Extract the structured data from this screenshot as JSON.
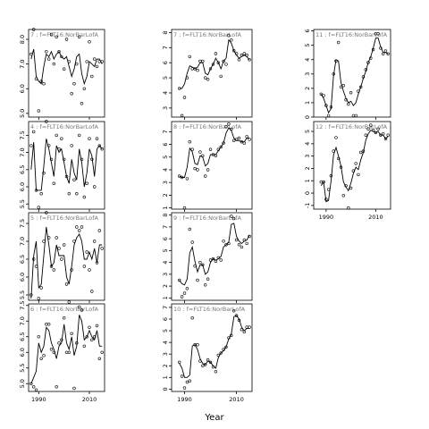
{
  "figure": {
    "xlabel": "Year"
  },
  "chart_data": [
    {
      "type": "scatter",
      "title": "7 : f=FLT16:NorBarLofA",
      "xlim": [
        1986,
        2016
      ],
      "ylim": [
        4.85,
        8.4
      ],
      "yticks": [
        5,
        6,
        7,
        8
      ],
      "ytick_labels": [
        "5.0",
        "6.0",
        "7.0",
        "8.0"
      ],
      "x": [
        1987,
        1988,
        1989,
        1990,
        1991,
        1992,
        1993,
        1994,
        1995,
        1996,
        1997,
        1998,
        1999,
        2000,
        2001,
        2002,
        2003,
        2004,
        2005,
        2006,
        2007,
        2008,
        2009,
        2010,
        2011,
        2012,
        2013,
        2014,
        2015
      ],
      "y": [
        7.4,
        8.4,
        6.4,
        5.1,
        6.3,
        6.2,
        7.5,
        7.2,
        8.2,
        7.0,
        8.1,
        7.5,
        7.3,
        6.8,
        8.0,
        7.1,
        5.8,
        6.2,
        7.0,
        8.1,
        5.4,
        6.0,
        7.1,
        7.9,
        6.5,
        7.2,
        6.9,
        7.1,
        7.1
      ],
      "smooth": [
        7.2,
        7.6,
        6.5,
        6.3,
        6.2,
        6.9,
        7.4,
        7.3,
        7.5,
        7.2,
        7.4,
        7.5,
        7.3,
        7.2,
        7.3,
        6.9,
        6.5,
        6.8,
        7.3,
        7.4,
        6.6,
        6.2,
        6.5,
        7.1,
        7.0,
        6.9,
        7.2,
        7.2,
        7.0
      ]
    },
    {
      "type": "scatter",
      "title": "4 : f=FLT16:NorBarLofA",
      "xlim": [
        1986,
        2016
      ],
      "ylim": [
        5.35,
        7.9
      ],
      "yticks": [
        5.5,
        6.0,
        6.5,
        7.0,
        7.5
      ],
      "ytick_labels": [
        "5.5",
        "6.0",
        "6.5",
        "7.0",
        "7.5"
      ],
      "x": [
        1987,
        1988,
        1989,
        1990,
        1991,
        1992,
        1993,
        1994,
        1995,
        1996,
        1997,
        1998,
        1999,
        2000,
        2001,
        2002,
        2003,
        2004,
        2005,
        2006,
        2007,
        2008,
        2009,
        2010,
        2011,
        2012,
        2013,
        2014,
        2015
      ],
      "y": [
        7.2,
        7.6,
        5.9,
        5.4,
        5.8,
        6.4,
        7.9,
        7.2,
        6.8,
        6.1,
        7.5,
        7.1,
        7.4,
        6.8,
        6.3,
        5.8,
        7.2,
        6.2,
        5.8,
        7.5,
        6.8,
        5.7,
        6.1,
        7.4,
        6.8,
        6.0,
        7.4,
        7.2,
        7.1
      ],
      "smooth": [
        6.5,
        7.3,
        5.9,
        5.9,
        5.9,
        6.6,
        7.4,
        7.1,
        6.7,
        6.3,
        7.2,
        7.0,
        7.1,
        6.7,
        6.3,
        6.1,
        6.8,
        6.4,
        6.2,
        7.1,
        6.7,
        6.0,
        6.4,
        7.1,
        6.9,
        6.3,
        7.1,
        7.2,
        7.1
      ]
    },
    {
      "type": "scatter",
      "title": "5 : f=FLT16:NorBarLofA",
      "xlim": [
        1986,
        2016
      ],
      "ylim": [
        5.35,
        7.8
      ],
      "yticks": [
        5.5,
        6.0,
        6.5,
        7.0,
        7.5
      ],
      "ytick_labels": [
        "5.5",
        "6.0",
        "6.5",
        "7.0",
        "7.5"
      ],
      "x": [
        1987,
        1988,
        1989,
        1990,
        1991,
        1992,
        1993,
        1994,
        1995,
        1996,
        1997,
        1998,
        1999,
        2000,
        2001,
        2002,
        2003,
        2004,
        2005,
        2006,
        2007,
        2008,
        2009,
        2010,
        2011,
        2012,
        2013,
        2014,
        2015
      ],
      "y": [
        5.5,
        6.5,
        6.3,
        5.4,
        5.7,
        7.0,
        7.8,
        7.1,
        6.3,
        6.2,
        7.1,
        6.8,
        6.5,
        6.9,
        5.8,
        5.3,
        6.2,
        7.0,
        7.4,
        7.3,
        7.4,
        6.3,
        6.7,
        6.2,
        5.6,
        7.0,
        6.4,
        7.3,
        6.8
      ],
      "smooth": [
        5.4,
        6.6,
        7.0,
        5.7,
        5.8,
        6.6,
        7.4,
        6.9,
        6.3,
        6.4,
        6.9,
        6.6,
        6.6,
        6.6,
        6.0,
        5.8,
        6.3,
        6.9,
        7.1,
        7.2,
        7.0,
        6.5,
        6.5,
        6.7,
        6.5,
        6.8,
        6.4,
        6.9,
        6.9
      ]
    },
    {
      "type": "scatter",
      "title": "6 : f=FLT16:NorBarLofA",
      "xlim": [
        1986,
        2016
      ],
      "ylim": [
        4.75,
        7.55
      ],
      "yticks": [
        5.0,
        5.5,
        6.0,
        6.5,
        7.0,
        7.5
      ],
      "ytick_labels": [
        "5.0",
        "5.5",
        "6.0",
        "6.5",
        "7.0",
        "7.5"
      ],
      "x": [
        1987,
        1988,
        1989,
        1990,
        1991,
        1992,
        1993,
        1994,
        1995,
        1996,
        1997,
        1998,
        1999,
        2000,
        2001,
        2002,
        2003,
        2004,
        2005,
        2006,
        2007,
        2008,
        2009,
        2010,
        2011,
        2012,
        2013,
        2014,
        2015
      ],
      "y": [
        5.0,
        4.9,
        4.8,
        6.5,
        5.8,
        5.9,
        6.9,
        6.9,
        6.1,
        6.0,
        4.9,
        6.3,
        6.4,
        7.1,
        6.0,
        6.0,
        6.6,
        4.85,
        6.3,
        7.45,
        7.35,
        6.2,
        6.5,
        6.8,
        6.4,
        6.5,
        6.85,
        5.8,
        6.0
      ],
      "smooth": [
        5.0,
        5.2,
        5.4,
        6.3,
        6.0,
        6.2,
        6.8,
        6.7,
        6.3,
        6.1,
        5.8,
        6.2,
        6.3,
        6.9,
        6.3,
        6.1,
        6.5,
        5.9,
        6.2,
        7.2,
        7.0,
        6.4,
        6.5,
        6.7,
        6.5,
        6.4,
        6.7,
        6.2,
        6.2
      ]
    },
    {
      "type": "scatter",
      "title": "7 : f=FLT16:NorBarLofA",
      "xlim": [
        1985,
        2016
      ],
      "ylim": [
        2.4,
        8.2
      ],
      "yticks": [
        3,
        4,
        5,
        6,
        7,
        8
      ],
      "ytick_labels": [
        "3",
        "4",
        "5",
        "6",
        "7",
        "8"
      ],
      "x": [
        1988,
        1989,
        1990,
        1991,
        1992,
        1993,
        1994,
        1995,
        1996,
        1997,
        1998,
        1999,
        2000,
        2001,
        2002,
        2003,
        2004,
        2005,
        2006,
        2007,
        2008,
        2009,
        2010,
        2011,
        2012,
        2013,
        2014,
        2015
      ],
      "y": [
        4.3,
        2.5,
        3.7,
        5.0,
        6.4,
        5.6,
        5.6,
        5.5,
        6.1,
        6.1,
        5.0,
        4.9,
        5.6,
        5.9,
        6.6,
        6.0,
        5.1,
        6.1,
        5.9,
        7.8,
        7.5,
        6.8,
        6.6,
        6.2,
        6.5,
        6.6,
        6.5,
        6.2
      ],
      "smooth": [
        4.3,
        4.3,
        4.6,
        5.3,
        5.8,
        5.7,
        5.6,
        5.7,
        6.0,
        6.0,
        5.3,
        5.2,
        5.6,
        5.9,
        6.3,
        6.0,
        5.6,
        6.1,
        6.3,
        7.5,
        7.3,
        6.8,
        6.5,
        6.3,
        6.4,
        6.5,
        6.4,
        6.2
      ]
    },
    {
      "type": "scatter",
      "title": "8 : f=FLT16:NorBarLofA",
      "xlim": [
        1985,
        2016
      ],
      "ylim": [
        0.9,
        7.8
      ],
      "yticks": [
        1,
        2,
        3,
        4,
        5,
        6,
        7
      ],
      "ytick_labels": [
        "1",
        "2",
        "3",
        "4",
        "5",
        "6",
        "7"
      ],
      "x": [
        1988,
        1989,
        1990,
        1991,
        1992,
        1993,
        1994,
        1995,
        1996,
        1997,
        1998,
        1999,
        2000,
        2001,
        2002,
        2003,
        2004,
        2005,
        2006,
        2007,
        2008,
        2009,
        2010,
        2011,
        2012,
        2013,
        2014,
        2015
      ],
      "y": [
        3.5,
        3.4,
        1.0,
        3.3,
        6.2,
        5.6,
        4.1,
        4.0,
        5.4,
        5.1,
        3.5,
        4.0,
        5.6,
        5.2,
        5.1,
        5.6,
        5.8,
        6.1,
        7.4,
        7.6,
        7.2,
        6.3,
        6.4,
        6.5,
        6.2,
        6.1,
        6.6,
        6.4
      ],
      "smooth": [
        3.5,
        3.4,
        3.4,
        4.2,
        5.7,
        5.4,
        4.5,
        4.4,
        5.1,
        5.0,
        4.3,
        4.5,
        5.2,
        5.2,
        5.2,
        5.5,
        5.8,
        6.1,
        6.9,
        7.3,
        7.1,
        6.5,
        6.3,
        6.3,
        6.2,
        6.2,
        6.5,
        6.5
      ]
    },
    {
      "type": "scatter",
      "title": "9 : f=FLT16:NorBarLofA",
      "xlim": [
        1985,
        2016
      ],
      "ylim": [
        0.8,
        8.2
      ],
      "yticks": [
        1,
        2,
        3,
        4,
        5,
        6,
        7,
        8
      ],
      "ytick_labels": [
        "1",
        "2",
        "3",
        "4",
        "5",
        "6",
        "7",
        "8"
      ],
      "x": [
        1988,
        1989,
        1990,
        1991,
        1992,
        1993,
        1994,
        1995,
        1996,
        1997,
        1998,
        1999,
        2000,
        2001,
        2002,
        2003,
        2004,
        2005,
        2006,
        2007,
        2008,
        2009,
        2010,
        2011,
        2012,
        2013,
        2014,
        2015
      ],
      "y": [
        2.5,
        1.1,
        1.4,
        1.8,
        6.8,
        5.7,
        3.7,
        2.5,
        4.0,
        3.8,
        2.1,
        2.6,
        4.2,
        4.3,
        4.1,
        4.4,
        4.2,
        5.8,
        5.5,
        5.6,
        7.9,
        7.7,
        5.9,
        5.5,
        5.3,
        5.9,
        5.6,
        6.2
      ],
      "smooth": [
        2.5,
        2.2,
        2.1,
        2.6,
        4.8,
        5.3,
        4.1,
        3.2,
        3.8,
        3.8,
        3.0,
        3.2,
        4.0,
        4.3,
        4.2,
        4.3,
        4.5,
        5.3,
        5.5,
        5.7,
        7.2,
        7.3,
        6.2,
        5.8,
        5.6,
        5.8,
        5.9,
        6.3
      ]
    },
    {
      "type": "scatter",
      "title": "10 : f=FLT16:NorBarLofA",
      "xlim": [
        1985,
        2016
      ],
      "ylim": [
        -0.2,
        7.3
      ],
      "yticks": [
        0,
        1,
        2,
        3,
        4,
        5,
        6,
        7
      ],
      "ytick_labels": [
        "0",
        "1",
        "2",
        "3",
        "4",
        "5",
        "6",
        "7"
      ],
      "x": [
        1988,
        1989,
        1990,
        1991,
        1992,
        1993,
        1994,
        1995,
        1996,
        1997,
        1998,
        1999,
        2000,
        2001,
        2002,
        2003,
        2004,
        2005,
        2006,
        2007,
        2008,
        2009,
        2010,
        2011,
        2012,
        2013,
        2014,
        2015
      ],
      "y": [
        2.3,
        1.1,
        0.1,
        0.6,
        0.7,
        6.1,
        3.8,
        3.8,
        2.4,
        2.0,
        2.1,
        2.5,
        2.3,
        1.9,
        1.5,
        2.9,
        3.1,
        3.4,
        3.6,
        4.4,
        4.6,
        6.7,
        6.3,
        5.9,
        5.1,
        4.9,
        5.3,
        5.3
      ],
      "smooth": [
        2.2,
        1.8,
        1.0,
        1.0,
        1.2,
        3.7,
        3.8,
        3.4,
        2.6,
        2.2,
        2.1,
        2.4,
        2.3,
        2.0,
        1.8,
        2.7,
        3.1,
        3.3,
        3.6,
        4.3,
        4.7,
        6.2,
        6.3,
        6.0,
        5.3,
        5.0,
        5.2,
        5.2
      ]
    },
    {
      "type": "scatter",
      "title": "11 : f=FLT16:NorBarLofA",
      "xlim": [
        1985,
        2016
      ],
      "ylim": [
        0,
        6.1
      ],
      "yticks": [
        0,
        1,
        2,
        3,
        4,
        5,
        6
      ],
      "ytick_labels": [
        "0",
        "1",
        "2",
        "3",
        "4",
        "5",
        "6"
      ],
      "x": [
        1988,
        1989,
        1990,
        1991,
        1992,
        1993,
        1994,
        1995,
        1996,
        1997,
        1998,
        1999,
        2000,
        2001,
        2002,
        2003,
        2004,
        2005,
        2006,
        2007,
        2008,
        2009,
        2010,
        2011,
        2012,
        2013,
        2014,
        2015
      ],
      "y": [
        1.6,
        1.5,
        0.8,
        0.1,
        0.7,
        3.0,
        3.9,
        5.2,
        2.1,
        2.2,
        1.2,
        0.9,
        1.7,
        0.1,
        0.1,
        1.8,
        2.1,
        2.8,
        3.3,
        3.8,
        4.1,
        4.7,
        5.8,
        5.8,
        4.8,
        4.4,
        4.6,
        4.4
      ],
      "smooth": [
        1.6,
        1.3,
        0.8,
        0.3,
        0.6,
        2.9,
        4.0,
        3.9,
        2.4,
        1.8,
        1.3,
        1.0,
        1.1,
        0.8,
        1.0,
        1.6,
        2.1,
        2.7,
        3.2,
        3.8,
        4.2,
        4.8,
        5.5,
        5.5,
        4.9,
        4.5,
        4.5,
        4.4
      ]
    },
    {
      "type": "scatter",
      "title": "12 : f=FLT16:NorBarLofA",
      "xlim": [
        1985,
        2016
      ],
      "ylim": [
        -1.3,
        5.8
      ],
      "yticks": [
        -1,
        0,
        1,
        2,
        3,
        4,
        5
      ],
      "ytick_labels": [
        "-1",
        "0",
        "1",
        "2",
        "3",
        "4",
        "5"
      ],
      "x": [
        1988,
        1989,
        1990,
        1991,
        1992,
        1993,
        1994,
        1995,
        1996,
        1997,
        1998,
        1999,
        2000,
        2001,
        2002,
        2003,
        2004,
        2005,
        2006,
        2007,
        2008,
        2009,
        2010,
        2011,
        2012,
        2013,
        2014,
        2015
      ],
      "y": [
        0.9,
        0.9,
        -0.5,
        0.3,
        1.4,
        3.4,
        4.5,
        2.8,
        2.1,
        -0.2,
        0.6,
        -1.2,
        0.4,
        1.8,
        2.4,
        1.5,
        3.3,
        3.4,
        4.7,
        5.2,
        5.5,
        5.1,
        4.9,
        5.2,
        4.7,
        4.8,
        4.4,
        4.7
      ],
      "smooth": [
        0.6,
        0.9,
        -0.7,
        -0.6,
        1.0,
        3.1,
        3.7,
        3.0,
        2.2,
        0.9,
        0.5,
        0.2,
        0.8,
        1.6,
        2.1,
        1.9,
        2.7,
        3.3,
        4.3,
        4.8,
        5.1,
        5.0,
        4.9,
        5.0,
        4.7,
        4.7,
        4.4,
        4.6
      ]
    }
  ]
}
